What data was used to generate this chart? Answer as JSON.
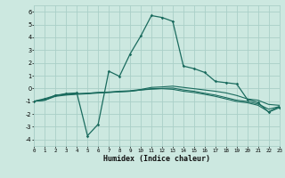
{
  "title": "",
  "xlabel": "Humidex (Indice chaleur)",
  "xlim": [
    0,
    23
  ],
  "ylim": [
    -4.5,
    6.5
  ],
  "yticks": [
    -4,
    -3,
    -2,
    -1,
    0,
    1,
    2,
    3,
    4,
    5,
    6
  ],
  "xticks": [
    0,
    1,
    2,
    3,
    4,
    5,
    6,
    7,
    8,
    9,
    10,
    11,
    12,
    13,
    14,
    15,
    16,
    17,
    18,
    19,
    20,
    21,
    22,
    23
  ],
  "background_color": "#cce8e0",
  "grid_color": "#aacfc8",
  "line_color": "#1a6b5e",
  "line1_x": [
    0,
    1,
    2,
    3,
    4,
    5,
    6,
    7,
    8,
    9,
    10,
    11,
    12,
    13,
    14,
    15,
    16,
    17,
    18,
    19,
    20,
    21,
    22,
    23
  ],
  "line1_y": [
    -1.0,
    -0.8,
    -0.55,
    -0.4,
    -0.35,
    -3.7,
    -2.8,
    1.35,
    0.95,
    2.7,
    4.1,
    5.7,
    5.55,
    5.25,
    1.75,
    1.55,
    1.25,
    0.55,
    0.45,
    0.35,
    -0.85,
    -1.1,
    -1.85,
    -1.5
  ],
  "line2_x": [
    0,
    1,
    2,
    3,
    4,
    5,
    6,
    7,
    8,
    9,
    10,
    11,
    12,
    13,
    14,
    15,
    16,
    17,
    18,
    19,
    20,
    21,
    22,
    23
  ],
  "line2_y": [
    -1.0,
    -0.9,
    -0.55,
    -0.45,
    -0.42,
    -0.38,
    -0.32,
    -0.28,
    -0.22,
    -0.18,
    -0.08,
    0.08,
    0.12,
    0.18,
    0.08,
    -0.02,
    -0.12,
    -0.22,
    -0.35,
    -0.55,
    -0.82,
    -0.92,
    -1.25,
    -1.32
  ],
  "line3_x": [
    0,
    1,
    2,
    3,
    4,
    5,
    6,
    7,
    8,
    9,
    10,
    11,
    12,
    13,
    14,
    15,
    16,
    17,
    18,
    19,
    20,
    21,
    22,
    23
  ],
  "line3_y": [
    -1.0,
    -0.92,
    -0.52,
    -0.48,
    -0.42,
    -0.38,
    -0.32,
    -0.3,
    -0.26,
    -0.22,
    -0.12,
    -0.02,
    0.0,
    0.03,
    -0.12,
    -0.22,
    -0.38,
    -0.52,
    -0.72,
    -0.92,
    -1.02,
    -1.22,
    -1.62,
    -1.42
  ],
  "line4_x": [
    0,
    1,
    2,
    3,
    4,
    5,
    6,
    7,
    8,
    9,
    10,
    11,
    12,
    13,
    14,
    15,
    16,
    17,
    18,
    19,
    20,
    21,
    22,
    23
  ],
  "line4_y": [
    -1.0,
    -0.92,
    -0.62,
    -0.52,
    -0.46,
    -0.42,
    -0.36,
    -0.32,
    -0.26,
    -0.22,
    -0.12,
    -0.06,
    -0.02,
    -0.07,
    -0.22,
    -0.32,
    -0.46,
    -0.62,
    -0.82,
    -1.02,
    -1.12,
    -1.32,
    -1.82,
    -1.42
  ]
}
